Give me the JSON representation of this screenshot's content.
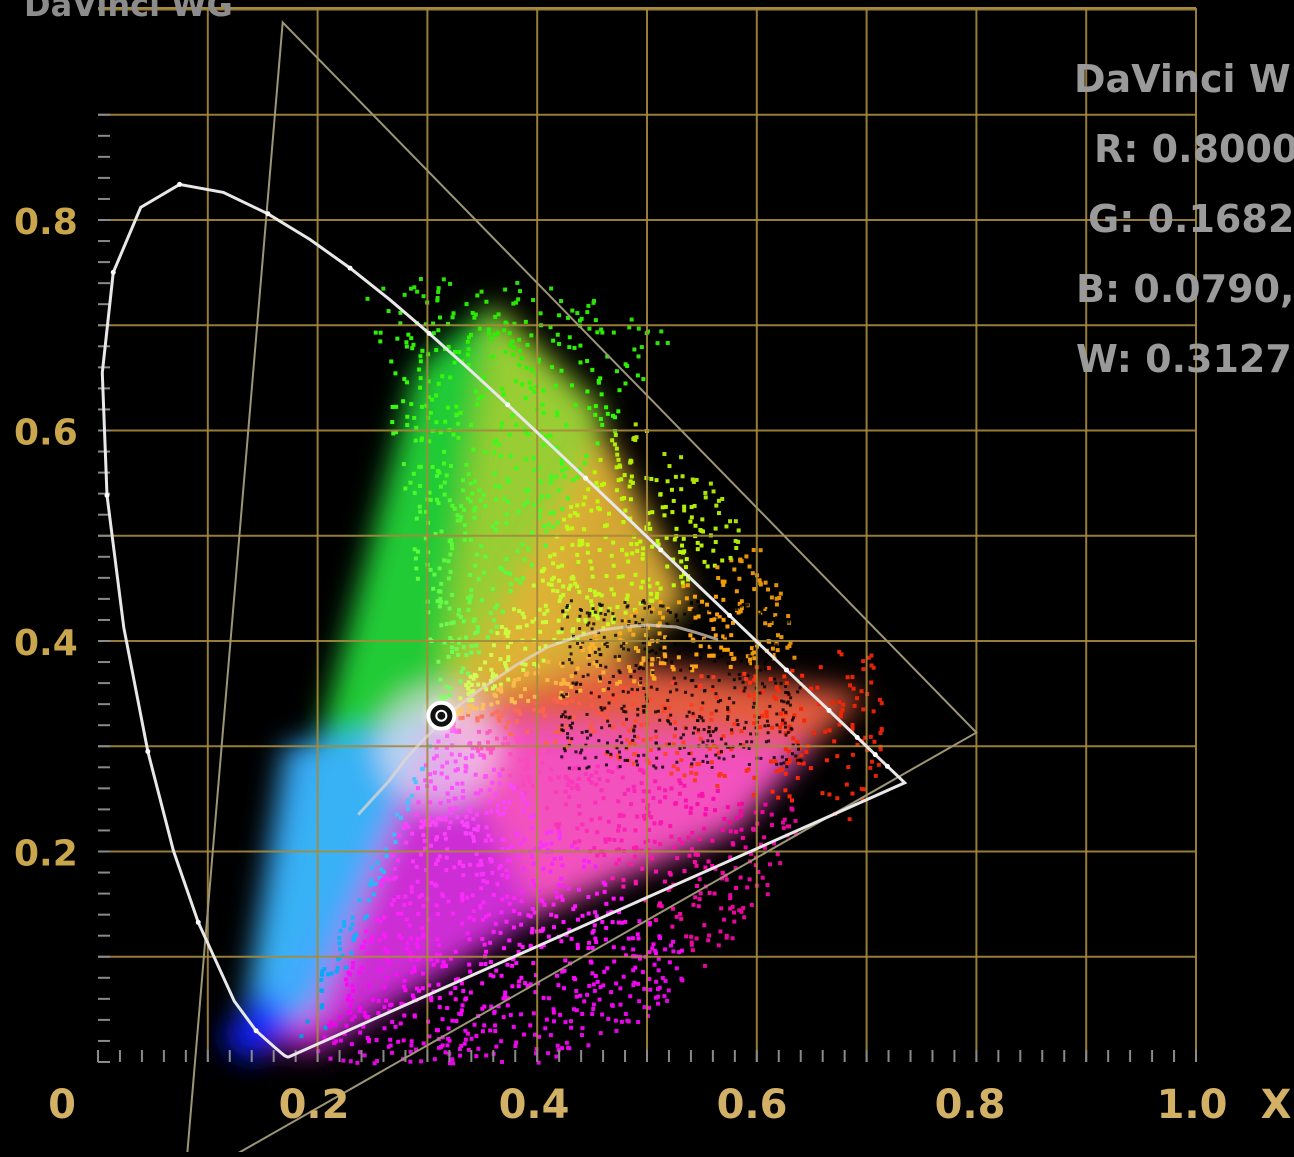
{
  "scope_title": "DaVinci WG",
  "info_panel": {
    "gamut_name": "DaVinci W",
    "lines": [
      "R: 0.8000,",
      "G: 0.1682,",
      "B: 0.0790, -",
      "W: 0.3127,"
    ]
  },
  "chart_data": {
    "type": "scatter",
    "title": "DaVinci WG",
    "xlabel": "X",
    "ylabel": "",
    "xlim": [
      0,
      1.0
    ],
    "ylim": [
      0,
      0.9
    ],
    "x_tick_labels": [
      "0",
      "0.2",
      "0.4",
      "0.6",
      "0.8",
      "1.0"
    ],
    "y_tick_labels": [
      "0.2",
      "0.4",
      "0.6",
      "0.8"
    ],
    "grid": true,
    "spectral_locus": [
      [
        0.1741,
        0.005
      ],
      [
        0.1738,
        0.0049
      ],
      [
        0.1727,
        0.0048
      ],
      [
        0.17,
        0.006
      ],
      [
        0.1666,
        0.0089
      ],
      [
        0.1611,
        0.0138
      ],
      [
        0.144,
        0.0297
      ],
      [
        0.1241,
        0.0578
      ],
      [
        0.0913,
        0.1327
      ],
      [
        0.0687,
        0.2007
      ],
      [
        0.0454,
        0.295
      ],
      [
        0.0235,
        0.4127
      ],
      [
        0.0082,
        0.5384
      ],
      [
        0.0039,
        0.6548
      ],
      [
        0.0139,
        0.7502
      ],
      [
        0.0389,
        0.812
      ],
      [
        0.0743,
        0.8338
      ],
      [
        0.1142,
        0.8262
      ],
      [
        0.1547,
        0.8059
      ],
      [
        0.1929,
        0.7816
      ],
      [
        0.2296,
        0.7543
      ],
      [
        0.2658,
        0.7243
      ],
      [
        0.3016,
        0.6923
      ],
      [
        0.3373,
        0.6589
      ],
      [
        0.3731,
        0.6245
      ],
      [
        0.4087,
        0.5896
      ],
      [
        0.4441,
        0.5547
      ],
      [
        0.4788,
        0.5202
      ],
      [
        0.5125,
        0.4866
      ],
      [
        0.5448,
        0.4544
      ],
      [
        0.5752,
        0.4242
      ],
      [
        0.6029,
        0.3965
      ],
      [
        0.627,
        0.3725
      ],
      [
        0.6482,
        0.3514
      ],
      [
        0.6658,
        0.334
      ],
      [
        0.6801,
        0.3197
      ],
      [
        0.6915,
        0.3083
      ],
      [
        0.7006,
        0.2993
      ],
      [
        0.7079,
        0.292
      ],
      [
        0.714,
        0.2859
      ],
      [
        0.719,
        0.2809
      ],
      [
        0.723,
        0.277
      ],
      [
        0.726,
        0.274
      ],
      [
        0.7283,
        0.2717
      ],
      [
        0.7347,
        0.2653
      ]
    ],
    "planckian_locus": [
      [
        0.237,
        0.235
      ],
      [
        0.265,
        0.267
      ],
      [
        0.2806,
        0.2883
      ],
      [
        0.2952,
        0.3048
      ],
      [
        0.3135,
        0.3236
      ],
      [
        0.329,
        0.339
      ],
      [
        0.3451,
        0.3516
      ],
      [
        0.3805,
        0.3768
      ],
      [
        0.4091,
        0.3941
      ],
      [
        0.4369,
        0.4041
      ],
      [
        0.4599,
        0.4106
      ],
      [
        0.4781,
        0.4131
      ],
      [
        0.5008,
        0.4152
      ],
      [
        0.5269,
        0.4133
      ],
      [
        0.5447,
        0.408
      ],
      [
        0.5647,
        0.4013
      ]
    ],
    "gamut_triangle": {
      "name": "DaVinci WG",
      "R": [
        0.8,
        0.313
      ],
      "G": [
        0.1682,
        0.9877
      ],
      "B": [
        0.079,
        -0.1155
      ],
      "W": [
        0.3127,
        0.329
      ]
    },
    "white_point": [
      0.3127,
      0.329
    ],
    "image_distribution_description": "Scatter of image chromaticities spanning blue-cyan-green-yellow-orange-red-magenta hues, concentrated around the white point"
  }
}
